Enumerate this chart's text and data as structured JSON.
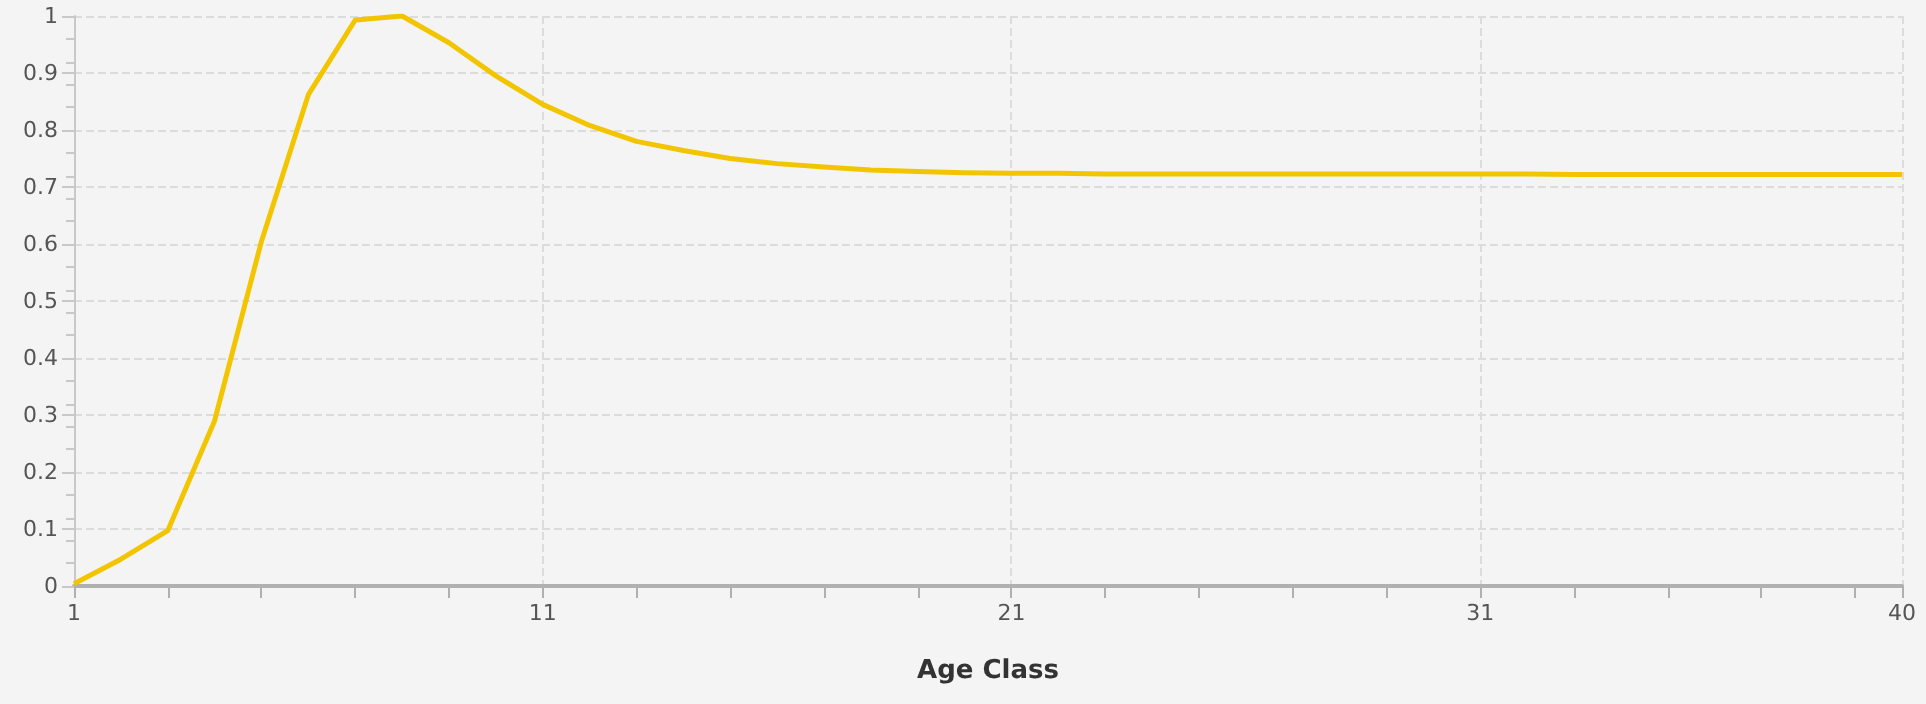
{
  "chart_data": {
    "type": "line",
    "xlabel": "Age Class",
    "x": [
      1,
      2,
      3,
      4,
      5,
      6,
      7,
      8,
      9,
      10,
      11,
      12,
      13,
      14,
      15,
      16,
      17,
      18,
      19,
      20,
      21,
      22,
      23,
      24,
      25,
      26,
      27,
      28,
      29,
      30,
      31,
      32,
      33,
      34,
      35,
      36,
      37,
      38,
      39,
      40
    ],
    "series": [
      {
        "color": "#f2c500",
        "values": [
          0.004,
          0.047,
          0.097,
          0.29,
          0.605,
          0.862,
          0.993,
          1.0,
          0.953,
          0.895,
          0.845,
          0.808,
          0.78,
          0.764,
          0.75,
          0.741,
          0.735,
          0.73,
          0.727,
          0.725,
          0.724,
          0.724,
          0.723,
          0.723,
          0.723,
          0.723,
          0.723,
          0.723,
          0.723,
          0.723,
          0.723,
          0.723,
          0.722,
          0.722,
          0.722,
          0.722,
          0.722,
          0.722,
          0.722,
          0.722
        ]
      }
    ],
    "xlim": [
      1,
      40
    ],
    "xticks": [
      1,
      {
        "value": 3,
        "label": null
      },
      {
        "value": 5,
        "label": null
      },
      {
        "value": 7,
        "label": null
      },
      {
        "value": 9,
        "label": null
      },
      11,
      {
        "value": 13,
        "label": null
      },
      {
        "value": 15,
        "label": null
      },
      {
        "value": 17,
        "label": null
      },
      {
        "value": 19,
        "label": null
      },
      21,
      {
        "value": 23,
        "label": null
      },
      {
        "value": 25,
        "label": null
      },
      {
        "value": 27,
        "label": null
      },
      {
        "value": 29,
        "label": null
      },
      31,
      {
        "value": 33,
        "label": null
      },
      {
        "value": 35,
        "label": null
      },
      {
        "value": 37,
        "label": null
      },
      {
        "value": 39,
        "label": null
      },
      40
    ],
    "ylim": [
      0,
      1
    ],
    "yticks": [
      0,
      0.1,
      0.2,
      0.3,
      0.4,
      0.5,
      0.6,
      0.7,
      0.8,
      0.9,
      1
    ],
    "grid": true,
    "marker": "none",
    "line_style": "solid"
  }
}
